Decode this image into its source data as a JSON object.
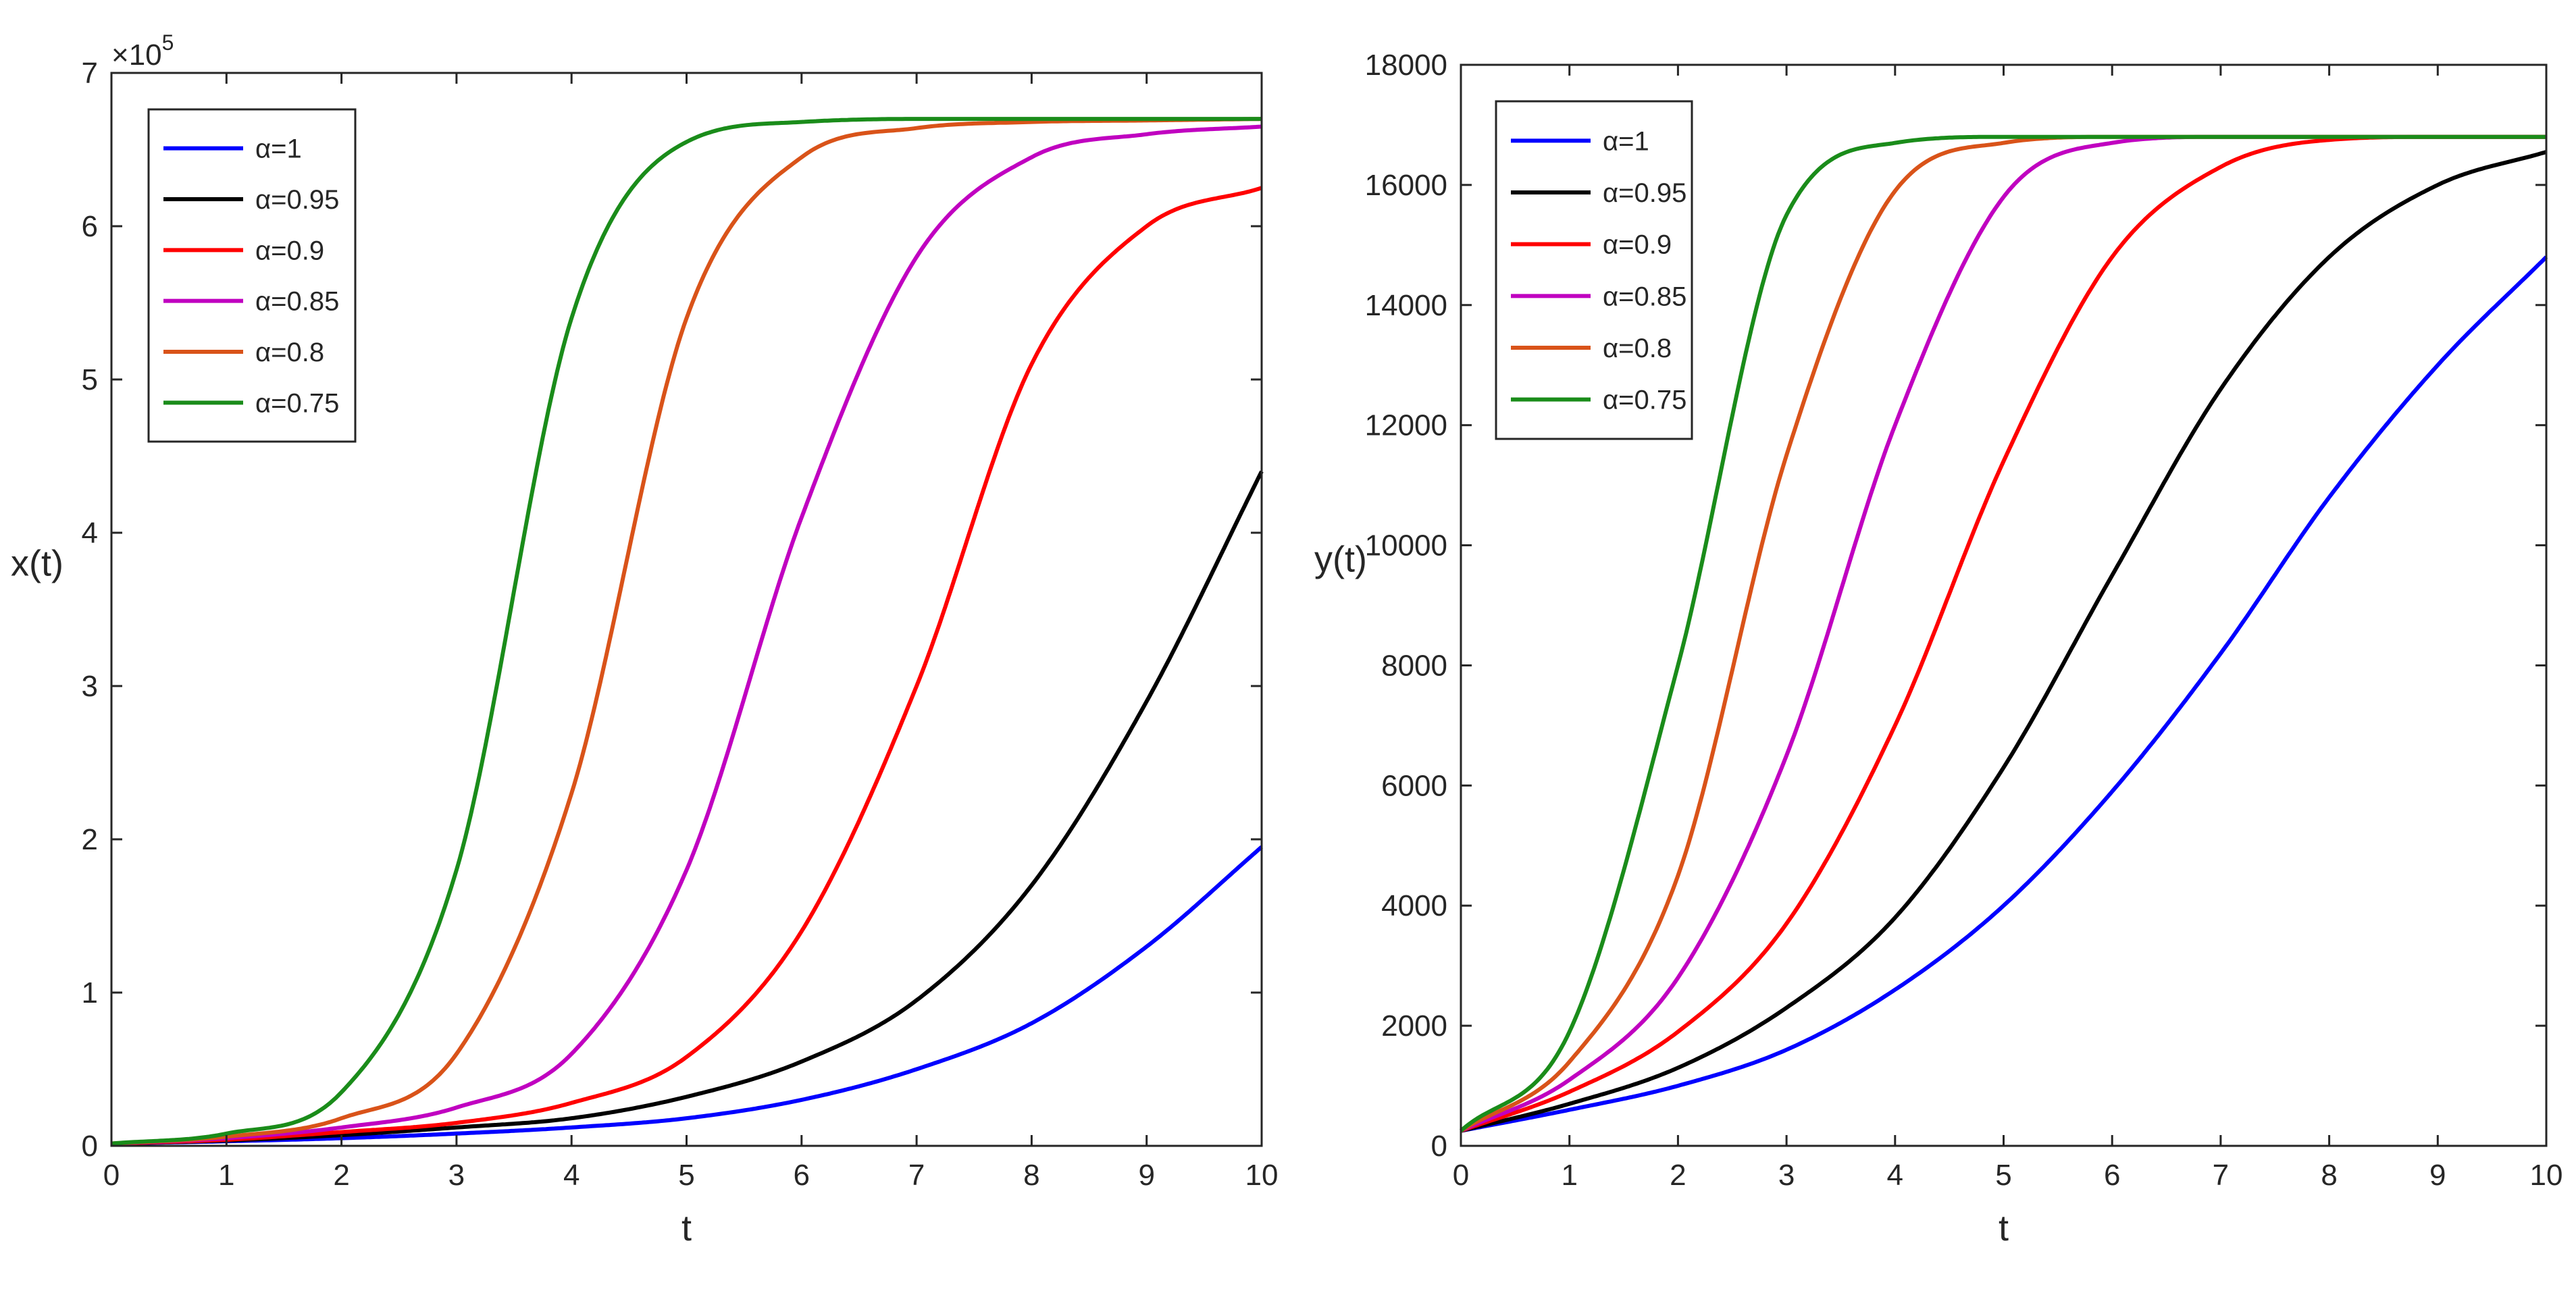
{
  "chart_data": [
    {
      "id": "left",
      "type": "line",
      "title": "",
      "xlabel": "t",
      "ylabel": "x(t)",
      "xlim": [
        0,
        10
      ],
      "ylim": [
        0,
        700000
      ],
      "y_exponent_label": "10",
      "y_exponent_power": "5",
      "x_ticks": [
        0,
        1,
        2,
        3,
        4,
        5,
        6,
        7,
        8,
        9,
        10
      ],
      "y_ticks": [
        0,
        100000,
        200000,
        300000,
        400000,
        500000,
        600000,
        700000
      ],
      "y_tick_labels": [
        "0",
        "1",
        "2",
        "3",
        "4",
        "5",
        "6",
        "7"
      ],
      "legend_position": "top-left",
      "x": [
        0,
        1,
        2,
        3,
        4,
        5,
        6,
        7,
        8,
        9,
        10
      ],
      "series": [
        {
          "name": "α=1",
          "color": "#0000ff",
          "values": [
            1500,
            3000,
            5000,
            8000,
            12000,
            18000,
            30000,
            50000,
            80000,
            130000,
            195000
          ]
        },
        {
          "name": "α=0.95",
          "color": "#000000",
          "values": [
            1500,
            3500,
            7000,
            12000,
            18000,
            32000,
            55000,
            95000,
            170000,
            290000,
            440000
          ]
        },
        {
          "name": "α=0.9",
          "color": "#ff0000",
          "values": [
            1500,
            4000,
            9000,
            15000,
            28000,
            58000,
            140000,
            300000,
            510000,
            600000,
            625000
          ]
        },
        {
          "name": "α=0.85",
          "color": "#c000c0",
          "values": [
            1500,
            5000,
            12000,
            25000,
            60000,
            180000,
            410000,
            580000,
            645000,
            660000,
            665000
          ]
        },
        {
          "name": "α=0.8",
          "color": "#d95319",
          "values": [
            1500,
            6000,
            18000,
            60000,
            230000,
            540000,
            645000,
            664000,
            668000,
            669000,
            670000
          ]
        },
        {
          "name": "α=0.75",
          "color": "#1a8c1a",
          "values": [
            1500,
            8000,
            35000,
            180000,
            540000,
            655000,
            668000,
            670000,
            670000,
            670000,
            670000
          ]
        }
      ]
    },
    {
      "id": "right",
      "type": "line",
      "title": "",
      "xlabel": "t",
      "ylabel": "y(t)",
      "xlim": [
        0,
        10
      ],
      "ylim": [
        0,
        18000
      ],
      "x_ticks": [
        0,
        1,
        2,
        3,
        4,
        5,
        6,
        7,
        8,
        9,
        10
      ],
      "y_ticks": [
        0,
        2000,
        4000,
        6000,
        8000,
        10000,
        12000,
        14000,
        16000,
        18000
      ],
      "y_tick_labels": [
        "0",
        "2000",
        "4000",
        "6000",
        "8000",
        "10000",
        "12000",
        "14000",
        "16000",
        "18000"
      ],
      "legend_position": "top-left",
      "x": [
        0,
        1,
        2,
        3,
        4,
        5,
        6,
        7,
        8,
        9,
        10
      ],
      "series": [
        {
          "name": "α=1",
          "color": "#0000ff",
          "values": [
            250,
            600,
            1000,
            1600,
            2600,
            4000,
            5900,
            8200,
            10800,
            13000,
            14800
          ]
        },
        {
          "name": "α=0.95",
          "color": "#000000",
          "values": [
            250,
            700,
            1300,
            2300,
            3800,
            6300,
            9500,
            12600,
            14800,
            16000,
            16550
          ]
        },
        {
          "name": "α=0.9",
          "color": "#ff0000",
          "values": [
            250,
            900,
            1900,
            3700,
            7000,
            11400,
            14800,
            16300,
            16750,
            16800,
            16800
          ]
        },
        {
          "name": "α=0.85",
          "color": "#c000c0",
          "values": [
            250,
            1100,
            2800,
            6500,
            12000,
            15800,
            16700,
            16800,
            16800,
            16800,
            16800
          ]
        },
        {
          "name": "α=0.8",
          "color": "#d95319",
          "values": [
            250,
            1400,
            4500,
            11500,
            15900,
            16700,
            16800,
            16800,
            16800,
            16800,
            16800
          ]
        },
        {
          "name": "α=0.75",
          "color": "#1a8c1a",
          "values": [
            250,
            1900,
            8000,
            15500,
            16700,
            16800,
            16800,
            16800,
            16800,
            16800,
            16800
          ]
        }
      ]
    }
  ]
}
